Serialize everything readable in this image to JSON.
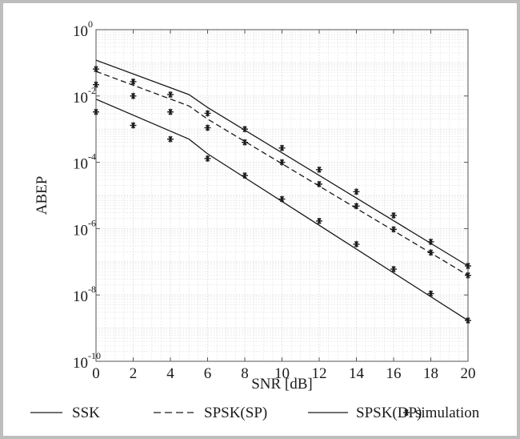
{
  "chart_data": {
    "type": "line",
    "xlabel": "SNR [dB]",
    "ylabel": "ABEP",
    "xlim": [
      0,
      20
    ],
    "ylim_exponents": [
      -10,
      0
    ],
    "y_scale": "log",
    "grid": true,
    "x_ticks": [
      "0",
      "2",
      "4",
      "6",
      "8",
      "10",
      "12",
      "14",
      "16",
      "18",
      "20"
    ],
    "y_ticks": [
      {
        "base": "10",
        "exp": "0"
      },
      {
        "base": "10",
        "exp": "-2"
      },
      {
        "base": "10",
        "exp": "-4"
      },
      {
        "base": "10",
        "exp": "-6"
      },
      {
        "base": "10",
        "exp": "-8"
      },
      {
        "base": "10",
        "exp": "-10"
      }
    ],
    "legend_position": "bottom",
    "series": [
      {
        "name": "SSK",
        "style": "solid",
        "line": {
          "x": [
            0,
            5,
            6,
            20
          ],
          "y": [
            0.12,
            0.011,
            0.0045,
            7.5e-08
          ]
        },
        "markers": {
          "x": [
            0,
            2,
            4,
            6,
            8,
            10,
            12,
            14,
            16,
            18,
            20
          ],
          "y": [
            0.065,
            0.027,
            0.011,
            0.003,
            0.001,
            0.00027,
            6e-05,
            1.3e-05,
            2.5e-06,
            4e-07,
            7.5e-08
          ]
        }
      },
      {
        "name": "SPSK(SP)",
        "style": "dashed",
        "line": {
          "x": [
            0,
            5,
            6,
            20
          ],
          "y": [
            0.055,
            0.005,
            0.002,
            3.9e-08
          ]
        },
        "markers": {
          "x": [
            0,
            2,
            4,
            6,
            8,
            10,
            12,
            14,
            16,
            18,
            20
          ],
          "y": [
            0.022,
            0.01,
            0.0033,
            0.0011,
            0.0004,
            0.0001,
            2.2e-05,
            4.8e-06,
            9.5e-07,
            1.9e-07,
            3.9e-08
          ]
        }
      },
      {
        "name": "SPSK(DP)",
        "style": "solid",
        "line": {
          "x": [
            0,
            5,
            6,
            20
          ],
          "y": [
            0.008,
            0.0005,
            0.00018,
            1.7e-09
          ]
        },
        "markers": {
          "x": [
            0,
            2,
            4,
            6,
            8,
            10,
            12,
            14,
            16,
            18,
            20
          ],
          "y": [
            0.0033,
            0.0013,
            0.0005,
            0.00013,
            4e-05,
            7.8e-06,
            1.7e-06,
            3.4e-07,
            6e-08,
            1.1e-08,
            1.7e-09
          ]
        }
      }
    ],
    "marker_legend": "simulation",
    "colors": {
      "line": "#1a1a1a",
      "grid": "#d9d9d9",
      "frame": "#bdbdbd"
    }
  }
}
